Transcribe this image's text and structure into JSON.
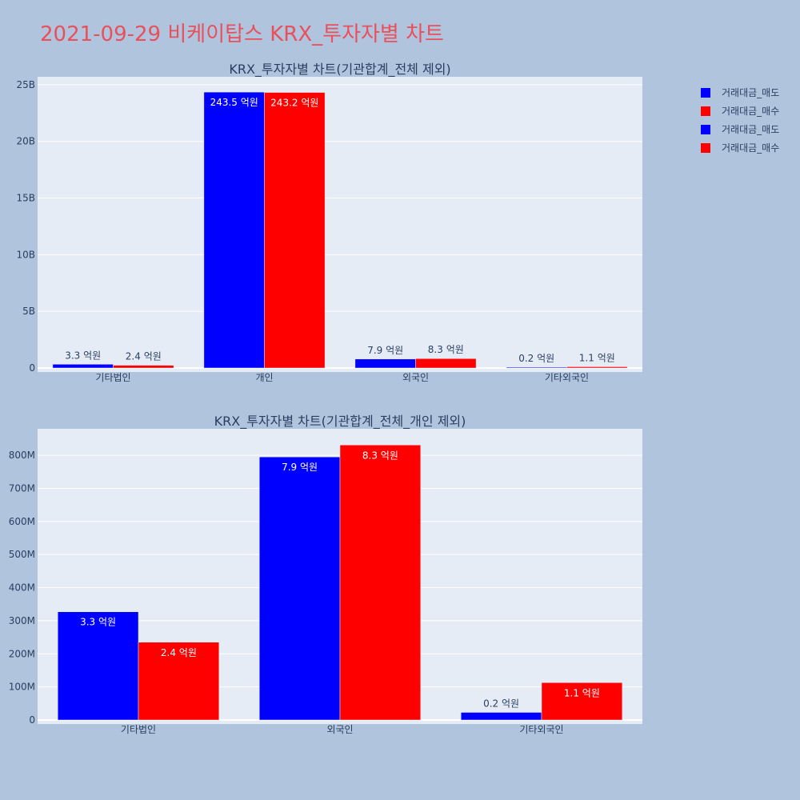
{
  "page_title": "2021-09-29 비케이탑스 KRX_투자자별 차트",
  "legend": [
    {
      "name": "거래대금_매도",
      "color": "#0000ff"
    },
    {
      "name": "거래대금_매수",
      "color": "#ff0000"
    },
    {
      "name": "거래대금_매도",
      "color": "#0000ff"
    },
    {
      "name": "거래대금_매수",
      "color": "#ff0000"
    }
  ],
  "chart_data": [
    {
      "type": "bar",
      "title": "KRX_투자자별 차트(기관합계_전체 제외)",
      "categories": [
        "기타법인",
        "개인",
        "외국인",
        "기타외국인"
      ],
      "series": [
        {
          "name": "거래대금_매도",
          "color": "#0000ff",
          "values": [
            330000000,
            24350000000,
            790000000,
            20000000
          ],
          "labels": [
            "3.3 억원",
            "243.5 억원",
            "7.9 억원",
            "0.2 억원"
          ]
        },
        {
          "name": "거래대금_매수",
          "color": "#ff0000",
          "values": [
            240000000,
            24320000000,
            830000000,
            110000000
          ],
          "labels": [
            "2.4 억원",
            "243.2 억원",
            "8.3 억원",
            "1.1 억원"
          ]
        }
      ],
      "ylim": [
        0,
        25700000000
      ],
      "yticks": [
        0,
        5000000000,
        10000000000,
        15000000000,
        20000000000,
        25000000000
      ],
      "ytick_labels": [
        "0",
        "5B",
        "10B",
        "15B",
        "20B",
        "25B"
      ],
      "grid": true
    },
    {
      "type": "bar",
      "title": "KRX_투자자별 차트(기관합계_전체_개인 제외)",
      "categories": [
        "기타법인",
        "외국인",
        "기타외국인"
      ],
      "series": [
        {
          "name": "거래대금_매도",
          "color": "#0000ff",
          "values": [
            327000000,
            795000000,
            23000000
          ],
          "labels": [
            "3.3 억원",
            "7.9 억원",
            "0.2 억원"
          ]
        },
        {
          "name": "거래대금_매수",
          "color": "#ff0000",
          "values": [
            235000000,
            831000000,
            113000000
          ],
          "labels": [
            "2.4 억원",
            "8.3 억원",
            "1.1 억원"
          ]
        }
      ],
      "ylim": [
        0,
        880000000
      ],
      "yticks": [
        0,
        100000000,
        200000000,
        300000000,
        400000000,
        500000000,
        600000000,
        700000000,
        800000000
      ],
      "ytick_labels": [
        "0",
        "100M",
        "200M",
        "300M",
        "400M",
        "500M",
        "600M",
        "700M",
        "800M"
      ],
      "grid": true
    }
  ]
}
